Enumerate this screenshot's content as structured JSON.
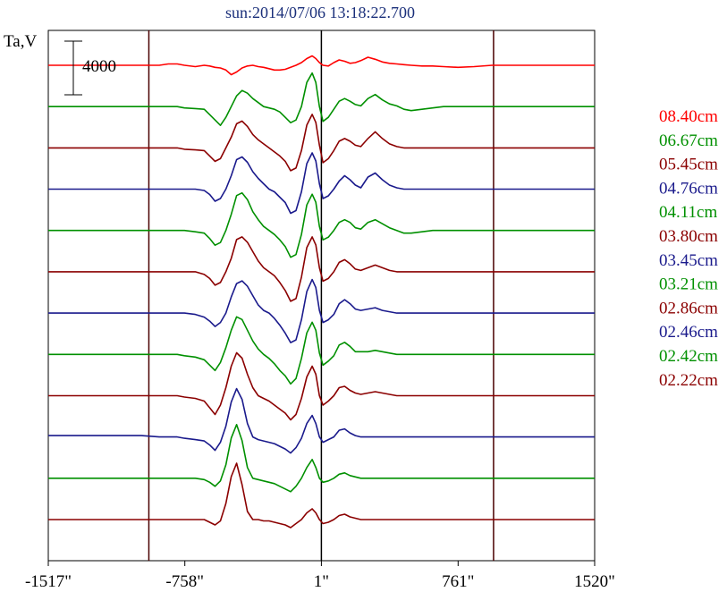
{
  "chart_data": {
    "type": "line",
    "title": "sun:2014/07/06 13:18:22.700",
    "ylabel": "Ta,V",
    "scale_bar_label": "4000",
    "scale_bar_value": 4000,
    "xlim": [
      -1517,
      1520
    ],
    "xticks": [
      -1517,
      -758,
      1,
      761,
      1520
    ],
    "xtick_labels": [
      "-1517\"",
      "-758\"",
      "1\"",
      "761\"",
      "1520\""
    ],
    "vertical_markers": [
      -958,
      1,
      958
    ],
    "grid": false,
    "legend_position": "right",
    "x": [
      -1517,
      -1000,
      -900,
      -850,
      -800,
      -760,
      -700,
      -650,
      -620,
      -590,
      -560,
      -530,
      -500,
      -470,
      -440,
      -410,
      -380,
      -350,
      -320,
      -290,
      -260,
      -230,
      -200,
      -170,
      -140,
      -110,
      -80,
      -50,
      -30,
      -10,
      10,
      40,
      70,
      100,
      130,
      160,
      190,
      220,
      260,
      300,
      340,
      380,
      420,
      460,
      500,
      560,
      620,
      680,
      760,
      850,
      950,
      1100,
      1520
    ],
    "series": [
      {
        "name": "08.40cm",
        "color": "#ff0000",
        "values": [
          0,
          0,
          0,
          100,
          100,
          0,
          -100,
          0,
          -50,
          -150,
          -200,
          -350,
          -700,
          -500,
          -200,
          -50,
          0,
          -100,
          -150,
          -250,
          -350,
          -350,
          -300,
          -150,
          0,
          200,
          500,
          700,
          500,
          200,
          0,
          -50,
          200,
          400,
          300,
          150,
          200,
          350,
          600,
          450,
          250,
          150,
          100,
          50,
          0,
          -50,
          -50,
          -100,
          -150,
          -100,
          0,
          0,
          0
        ]
      },
      {
        "name": "06.67cm",
        "color": "#009000",
        "values": [
          0,
          0,
          0,
          0,
          0,
          -100,
          -150,
          -200,
          -600,
          -1000,
          -1400,
          -800,
          0,
          800,
          1200,
          1000,
          600,
          300,
          0,
          -100,
          -200,
          -400,
          -800,
          -1200,
          -1000,
          0,
          1800,
          2500,
          1800,
          0,
          -1100,
          -800,
          -200,
          400,
          600,
          400,
          150,
          50,
          600,
          900,
          500,
          200,
          50,
          -200,
          -300,
          -200,
          -100,
          0,
          0,
          0,
          0,
          0,
          0
        ]
      },
      {
        "name": "05.45cm",
        "color": "#8b0000",
        "values": [
          0,
          0,
          0,
          0,
          0,
          -100,
          -150,
          -200,
          -600,
          -1000,
          -800,
          0,
          800,
          1800,
          2000,
          1600,
          1000,
          600,
          300,
          0,
          -300,
          -600,
          -1000,
          -1700,
          -1500,
          -200,
          1700,
          2500,
          1900,
          200,
          -1100,
          -800,
          -200,
          500,
          700,
          500,
          200,
          100,
          700,
          1200,
          700,
          300,
          100,
          0,
          0,
          0,
          0,
          0,
          0,
          0,
          0,
          0,
          0
        ]
      },
      {
        "name": "04.76cm",
        "color": "#1a1a8c",
        "values": [
          0,
          0,
          0,
          0,
          0,
          0,
          0,
          -100,
          -400,
          -900,
          -700,
          0,
          1000,
          2200,
          2400,
          2000,
          1300,
          800,
          400,
          0,
          -200,
          -600,
          -1000,
          -1800,
          -1600,
          -200,
          1900,
          2700,
          2100,
          400,
          -700,
          -500,
          0,
          600,
          1000,
          700,
          300,
          100,
          900,
          1200,
          700,
          300,
          100,
          0,
          0,
          0,
          0,
          0,
          0,
          0,
          0,
          0,
          0
        ]
      },
      {
        "name": "04.11cm",
        "color": "#009000",
        "values": [
          0,
          0,
          0,
          0,
          0,
          0,
          -100,
          -200,
          -600,
          -1100,
          -900,
          0,
          1200,
          2600,
          2800,
          2300,
          1400,
          800,
          300,
          0,
          -300,
          -700,
          -1200,
          -2000,
          -1800,
          -300,
          1900,
          2700,
          2100,
          300,
          -700,
          -500,
          0,
          600,
          800,
          600,
          200,
          100,
          600,
          800,
          500,
          200,
          0,
          -200,
          -200,
          -100,
          0,
          0,
          0,
          0,
          0,
          0,
          0
        ]
      },
      {
        "name": "03.80cm",
        "color": "#8b0000",
        "values": [
          0,
          0,
          0,
          0,
          0,
          0,
          0,
          -200,
          -500,
          -1000,
          -800,
          0,
          1000,
          2400,
          2600,
          2200,
          1500,
          800,
          300,
          0,
          -300,
          -800,
          -1400,
          -2200,
          -2000,
          -400,
          1800,
          2600,
          2000,
          300,
          -700,
          -500,
          0,
          700,
          900,
          600,
          200,
          100,
          300,
          500,
          300,
          100,
          0,
          0,
          0,
          0,
          0,
          0,
          0,
          0,
          0,
          0,
          0
        ]
      },
      {
        "name": "03.45cm",
        "color": "#1a1a8c",
        "values": [
          0,
          0,
          0,
          0,
          0,
          0,
          -100,
          -300,
          -600,
          -1000,
          -700,
          0,
          1200,
          2200,
          2400,
          2000,
          1300,
          600,
          200,
          0,
          -400,
          -900,
          -1500,
          -2200,
          -2000,
          -500,
          1600,
          2500,
          1900,
          200,
          -700,
          -500,
          -100,
          700,
          1000,
          700,
          300,
          200,
          300,
          400,
          200,
          100,
          0,
          0,
          0,
          0,
          0,
          0,
          0,
          0,
          0,
          0,
          0
        ]
      },
      {
        "name": "03.21cm",
        "color": "#009000",
        "values": [
          0,
          0,
          0,
          0,
          0,
          -100,
          -200,
          -400,
          -800,
          -1200,
          -600,
          500,
          1800,
          2800,
          2600,
          1800,
          1000,
          400,
          0,
          -300,
          -700,
          -1200,
          -1600,
          -2200,
          -1800,
          -300,
          1600,
          2400,
          1800,
          100,
          -800,
          -500,
          -100,
          700,
          900,
          600,
          200,
          200,
          200,
          300,
          200,
          100,
          0,
          0,
          0,
          0,
          0,
          0,
          0,
          0,
          0,
          0,
          0
        ]
      },
      {
        "name": "02.86cm",
        "color": "#8b0000",
        "values": [
          0,
          0,
          0,
          0,
          0,
          -100,
          -200,
          -400,
          -900,
          -1400,
          -700,
          600,
          2200,
          3200,
          2800,
          1600,
          600,
          0,
          -200,
          -400,
          -700,
          -1000,
          -1300,
          -1800,
          -1400,
          -200,
          1400,
          2200,
          1600,
          0,
          -700,
          -400,
          0,
          600,
          700,
          400,
          200,
          100,
          200,
          300,
          200,
          100,
          0,
          0,
          0,
          0,
          0,
          0,
          0,
          0,
          0,
          0,
          0
        ]
      },
      {
        "name": "02.46cm",
        "color": "#1a1a8c",
        "values": [
          100,
          100,
          0,
          0,
          0,
          -100,
          -200,
          -300,
          -600,
          -1000,
          -400,
          800,
          2600,
          3600,
          2800,
          1000,
          0,
          -200,
          -300,
          -400,
          -500,
          -700,
          -900,
          -1200,
          -800,
          -100,
          1000,
          1600,
          1000,
          0,
          -400,
          -200,
          0,
          500,
          600,
          300,
          100,
          0,
          0,
          0,
          0,
          0,
          0,
          0,
          0,
          0,
          0,
          0,
          0,
          0,
          0,
          0,
          0
        ]
      },
      {
        "name": "02.42cm",
        "color": "#009000",
        "values": [
          0,
          0,
          0,
          0,
          0,
          0,
          0,
          -100,
          -300,
          -600,
          -200,
          1000,
          3000,
          4000,
          2800,
          800,
          0,
          -100,
          -200,
          -300,
          -400,
          -600,
          -800,
          -1000,
          -600,
          0,
          800,
          1400,
          800,
          0,
          -300,
          -200,
          0,
          300,
          400,
          200,
          100,
          0,
          0,
          0,
          0,
          0,
          0,
          0,
          0,
          0,
          0,
          0,
          0,
          0,
          0,
          0,
          0
        ]
      },
      {
        "name": "02.22cm",
        "color": "#8b0000",
        "values": [
          0,
          0,
          0,
          0,
          0,
          0,
          0,
          0,
          -200,
          -400,
          -100,
          1200,
          3200,
          4200,
          2600,
          600,
          0,
          0,
          -100,
          -100,
          -200,
          -300,
          -400,
          -600,
          -300,
          0,
          500,
          800,
          500,
          0,
          -300,
          -200,
          0,
          300,
          400,
          200,
          100,
          0,
          0,
          0,
          0,
          0,
          0,
          0,
          0,
          0,
          0,
          0,
          0,
          0,
          0,
          0,
          0
        ]
      }
    ]
  }
}
